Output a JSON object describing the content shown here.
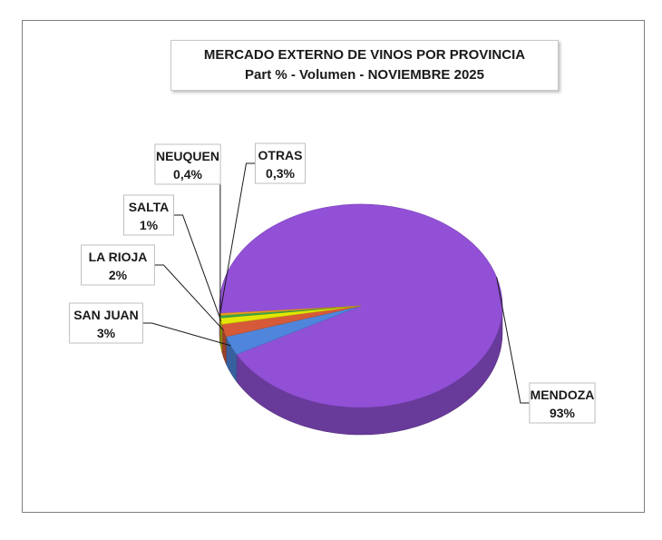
{
  "chart_data": {
    "type": "pie",
    "title": "MERCADO EXTERNO DE VINOS POR PROVINCIA",
    "subtitle": "Part % - Volumen - NOVIEMBRE 2025",
    "categories": [
      "MENDOZA",
      "SAN JUAN",
      "LA RIOJA",
      "SALTA",
      "NEUQUEN",
      "OTRAS"
    ],
    "values": [
      93,
      3,
      2,
      1,
      0.4,
      0.3
    ],
    "value_labels": [
      "93%",
      "3%",
      "2%",
      "1%",
      "0,4%",
      "0,3%"
    ],
    "colors": [
      "#9150d6",
      "#4f86dc",
      "#d65a3a",
      "#e3e600",
      "#3aa64a",
      "#f0a020"
    ],
    "legend": "none",
    "style": "3d"
  }
}
